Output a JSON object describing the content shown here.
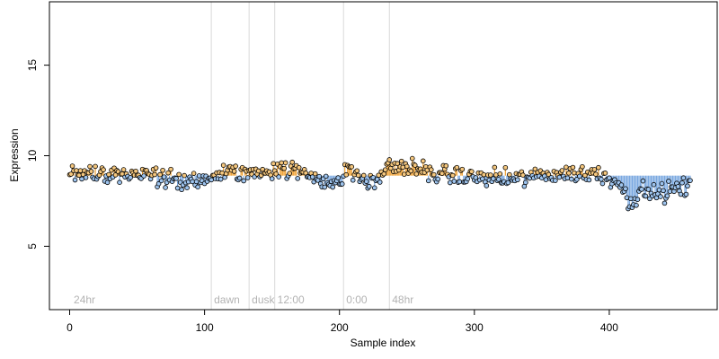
{
  "chart_data": {
    "type": "scatter",
    "title": "",
    "xlabel": "Sample index",
    "ylabel": "Expression",
    "xlim": [
      -15,
      480
    ],
    "ylim": [
      1.5,
      18.5
    ],
    "x_ticks": [
      0,
      100,
      200,
      300,
      400
    ],
    "y_ticks": [
      5,
      10,
      15
    ],
    "grid": false,
    "legend": "none",
    "baseline": 8.9,
    "colors": {
      "above": "#f5c77e",
      "below": "#9ec4ee",
      "stem_above": "#f0a030",
      "stem_below": "#7aa8e0",
      "divider": "#d9d9d9",
      "point_edge": "#000000"
    },
    "dividers": [
      105,
      133,
      152,
      203,
      237
    ],
    "region_labels": [
      {
        "x": 3,
        "label": "24hr"
      },
      {
        "x": 107,
        "label": "dawn"
      },
      {
        "x": 135,
        "label": "dusk"
      },
      {
        "x": 154,
        "label": "12:00"
      },
      {
        "x": 205,
        "label": "0:00"
      },
      {
        "x": 239,
        "label": "48hr"
      }
    ],
    "trend_knots": [
      [
        0,
        9.1
      ],
      [
        30,
        9.0
      ],
      [
        60,
        8.9
      ],
      [
        80,
        8.6
      ],
      [
        95,
        8.5
      ],
      [
        105,
        8.9
      ],
      [
        120,
        9.1
      ],
      [
        133,
        9.0
      ],
      [
        152,
        9.3
      ],
      [
        165,
        9.2
      ],
      [
        185,
        8.8
      ],
      [
        200,
        8.3
      ],
      [
        205,
        9.4
      ],
      [
        215,
        8.8
      ],
      [
        225,
        8.4
      ],
      [
        237,
        9.5
      ],
      [
        255,
        9.3
      ],
      [
        270,
        9.0
      ],
      [
        300,
        8.8
      ],
      [
        330,
        8.7
      ],
      [
        360,
        9.0
      ],
      [
        390,
        9.0
      ],
      [
        405,
        8.7
      ],
      [
        415,
        7.5
      ],
      [
        425,
        8.0
      ],
      [
        440,
        7.9
      ],
      [
        450,
        8.2
      ],
      [
        460,
        8.2
      ]
    ],
    "noise_amplitude": 0.25,
    "n_points": 461
  }
}
